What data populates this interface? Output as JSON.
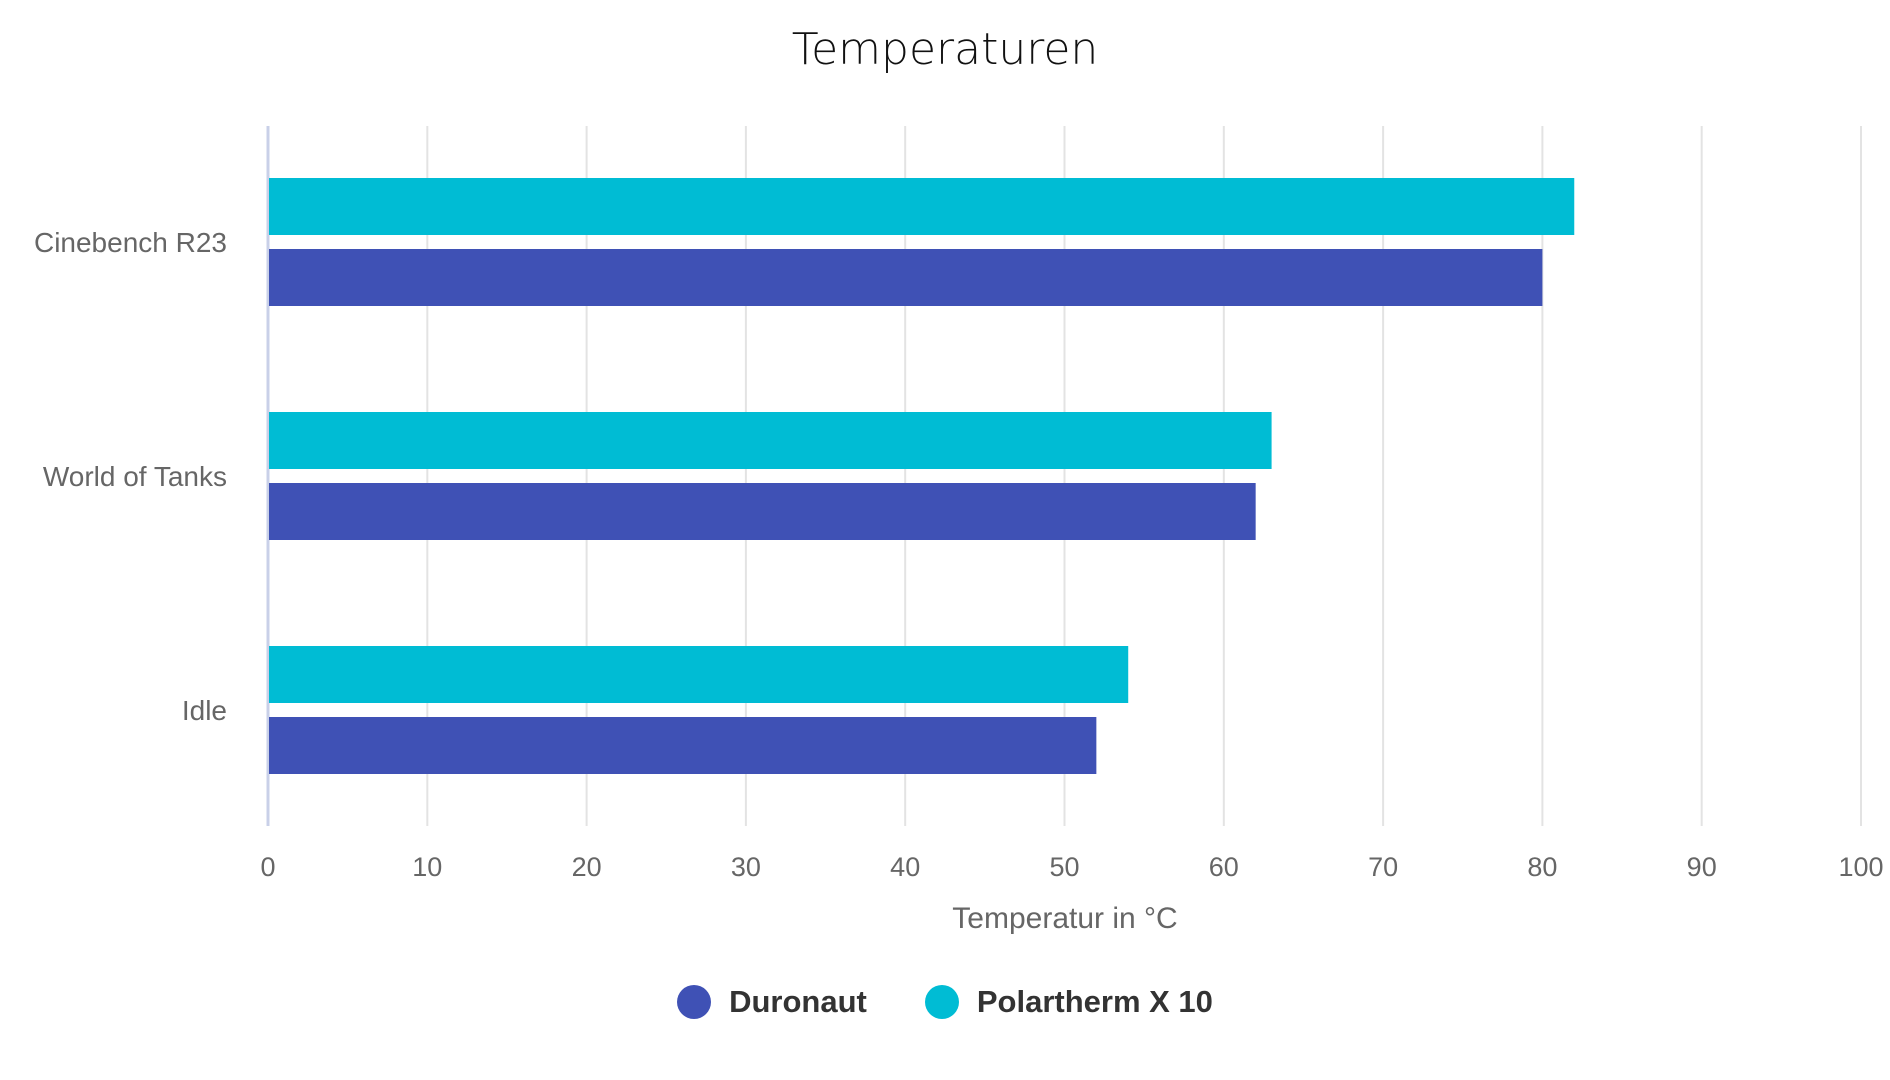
{
  "chart_data": {
    "type": "bar",
    "orientation": "horizontal",
    "title": "Temperaturen",
    "xlabel": "Temperatur in °C",
    "ylabel": "",
    "xlim": [
      0,
      100
    ],
    "x_ticks": [
      0,
      10,
      20,
      30,
      40,
      50,
      60,
      70,
      80,
      90,
      100
    ],
    "grid": true,
    "legend_position": "bottom",
    "categories": [
      "Cinebench R23",
      "World of Tanks",
      "Idle"
    ],
    "series": [
      {
        "name": "Polartherm X 10",
        "color": "#00BCD4",
        "values": [
          82,
          63,
          54
        ]
      },
      {
        "name": "Duronaut",
        "color": "#3F51B5",
        "values": [
          80,
          62,
          52
        ]
      }
    ]
  },
  "legend": [
    {
      "label": "Duronaut",
      "color": "#3F51B5"
    },
    {
      "label": "Polartherm X 10",
      "color": "#00BCD4"
    }
  ]
}
